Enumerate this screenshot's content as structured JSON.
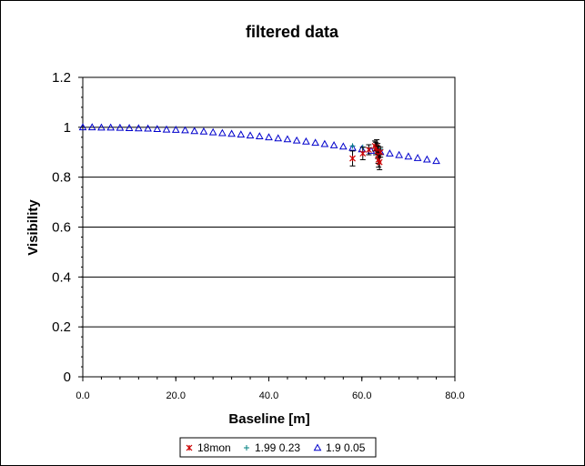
{
  "chart_data": {
    "type": "scatter",
    "title": "filtered data",
    "xlabel": "Baseline [m]",
    "ylabel": "Visibility",
    "xlim": [
      0,
      80
    ],
    "ylim": [
      0,
      1.2
    ],
    "x_ticks": [
      "0.0",
      "20.0",
      "40.0",
      "60.0",
      "80.0"
    ],
    "y_ticks": [
      "0",
      "0.2",
      "0.4",
      "0.6",
      "0.8",
      "1",
      "1.2"
    ],
    "x_tick_values": [
      0,
      20,
      40,
      60,
      80
    ],
    "y_tick_values": [
      0,
      0.2,
      0.4,
      0.6,
      0.8,
      1,
      1.2
    ],
    "grid": "horizontal",
    "legend_position": "bottom",
    "colors": {
      "series_18mon": "#cc0000",
      "series_199": "#008080",
      "series_19": "#0000cc",
      "error_bar": "#000000"
    },
    "series": [
      {
        "name": "18mon",
        "marker": "star",
        "points": [
          {
            "x": 58.0,
            "y": 0.875,
            "err": 0.03
          },
          {
            "x": 60.2,
            "y": 0.895,
            "err": 0.025
          },
          {
            "x": 61.5,
            "y": 0.91,
            "err": 0.02
          },
          {
            "x": 62.8,
            "y": 0.925,
            "err": 0.02
          },
          {
            "x": 63.0,
            "y": 0.915,
            "err": 0.025
          },
          {
            "x": 63.2,
            "y": 0.92,
            "err": 0.03
          },
          {
            "x": 63.4,
            "y": 0.905,
            "err": 0.03
          },
          {
            "x": 63.5,
            "y": 0.89,
            "err": 0.035
          },
          {
            "x": 63.6,
            "y": 0.87,
            "err": 0.03
          },
          {
            "x": 63.8,
            "y": 0.86,
            "err": 0.03
          },
          {
            "x": 64.0,
            "y": 0.9,
            "err": 0.02
          }
        ]
      },
      {
        "name": "1.99 0.23",
        "marker": "plus",
        "points": [
          {
            "x": 58.0,
            "y": 0.925
          },
          {
            "x": 60.2,
            "y": 0.92
          },
          {
            "x": 61.5,
            "y": 0.918
          },
          {
            "x": 62.8,
            "y": 0.915
          },
          {
            "x": 63.2,
            "y": 0.914
          },
          {
            "x": 63.6,
            "y": 0.913
          },
          {
            "x": 64.0,
            "y": 0.912
          }
        ]
      },
      {
        "name": "1.9 0.05",
        "marker": "triangle",
        "x": [
          0,
          2,
          4,
          6,
          8,
          10,
          12,
          14,
          16,
          18,
          20,
          22,
          24,
          26,
          28,
          30,
          32,
          34,
          36,
          38,
          40,
          42,
          44,
          46,
          48,
          50,
          52,
          54,
          56,
          58,
          60,
          62,
          64,
          66,
          68,
          70,
          72,
          74,
          76
        ],
        "y": [
          1.0,
          1.0,
          0.999,
          0.999,
          0.998,
          0.997,
          0.996,
          0.995,
          0.993,
          0.991,
          0.99,
          0.988,
          0.985,
          0.983,
          0.98,
          0.977,
          0.974,
          0.971,
          0.967,
          0.964,
          0.96,
          0.956,
          0.952,
          0.947,
          0.943,
          0.938,
          0.933,
          0.928,
          0.923,
          0.918,
          0.912,
          0.906,
          0.901,
          0.895,
          0.889,
          0.883,
          0.877,
          0.871,
          0.865
        ]
      }
    ]
  }
}
